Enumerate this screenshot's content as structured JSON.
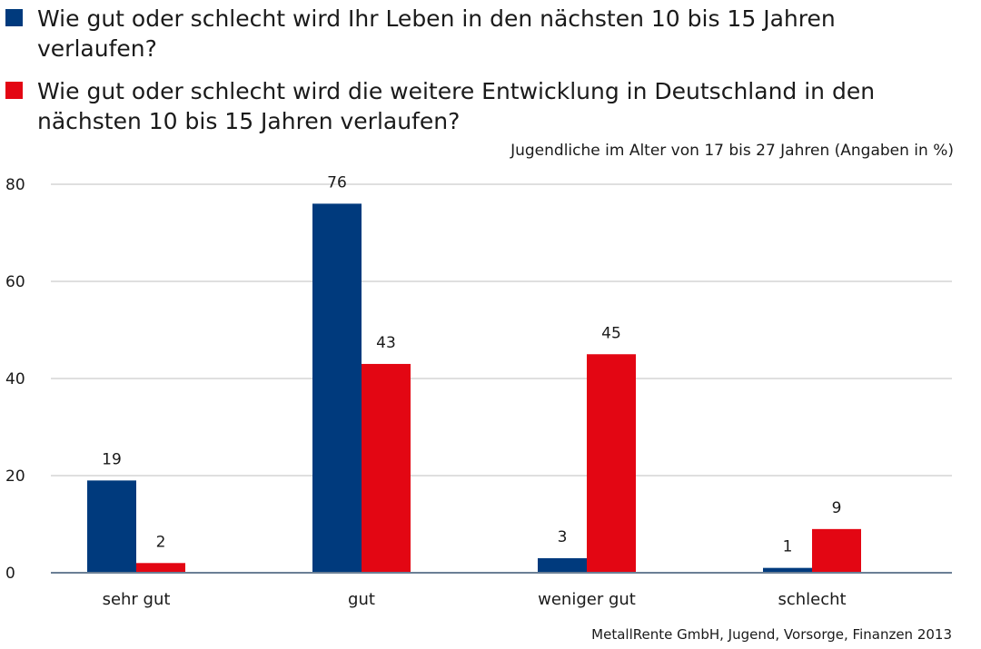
{
  "chart_data": {
    "type": "bar",
    "subtitle": "Jugendliche im Alter von 17 bis 27 Jahren (Angaben in %)",
    "source": "MetallRente GmbH, Jugend, Vorsorge, Finanzen 2013",
    "categories": [
      "sehr gut",
      "gut",
      "weniger gut",
      "schlecht"
    ],
    "series": [
      {
        "name": "Wie gut oder schlecht wird Ihr Leben in den nächsten 10 bis 15 Jahren verlaufen?",
        "color": "#003a7d",
        "values": [
          19,
          76,
          3,
          1
        ]
      },
      {
        "name": "Wie gut oder schlecht wird die weitere Entwicklung in Deutschland in den nächsten 10 bis 15 Jahren verlaufen?",
        "color": "#e30613",
        "values": [
          2,
          43,
          45,
          9
        ]
      }
    ],
    "ylim": [
      0,
      80
    ],
    "yticks": [
      0,
      20,
      40,
      60,
      80
    ],
    "grid": true,
    "legend_position": "top"
  }
}
